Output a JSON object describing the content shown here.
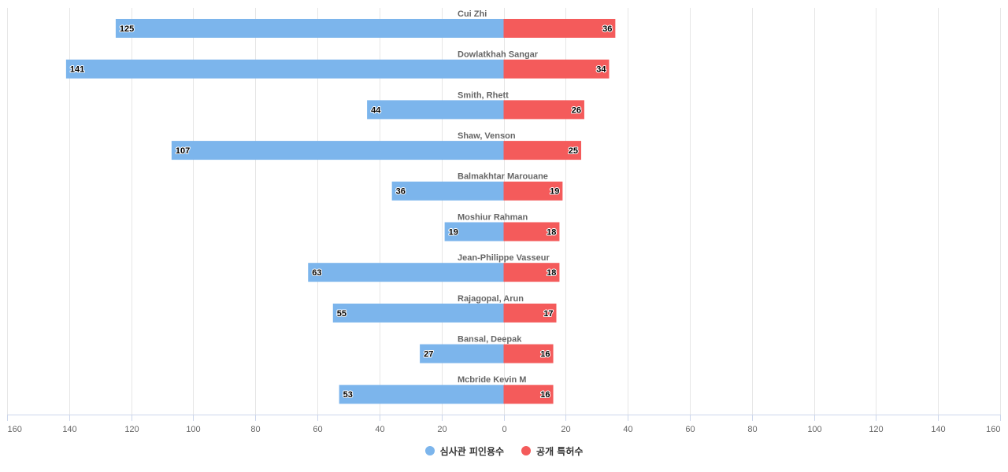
{
  "chart_data": {
    "type": "bar",
    "orientation": "horizontal-diverging",
    "categories": [
      "Cui Zhi",
      "Dowlatkhah Sangar",
      "Smith, Rhett",
      "Shaw, Venson",
      "Balmakhtar Marouane",
      "Moshiur Rahman",
      "Jean-Philippe Vasseur",
      "Rajagopal, Arun",
      "Bansal, Deepak",
      "Mcbride Kevin M"
    ],
    "series": [
      {
        "name": "심사관 피인용수",
        "color": "#7cb5ec",
        "side": "left",
        "values": [
          125,
          141,
          44,
          107,
          36,
          19,
          63,
          55,
          27,
          53
        ]
      },
      {
        "name": "공개 특허수",
        "color": "#f45b5b",
        "side": "right",
        "values": [
          36,
          34,
          26,
          25,
          19,
          18,
          18,
          17,
          16,
          16
        ]
      }
    ],
    "xlim": [
      -160,
      160
    ],
    "x_ticks": [
      -160,
      -140,
      -120,
      -100,
      -80,
      -60,
      -40,
      -20,
      0,
      20,
      40,
      60,
      80,
      100,
      120,
      140,
      160
    ],
    "tick_labels": [
      "160",
      "140",
      "120",
      "100",
      "80",
      "60",
      "40",
      "20",
      "0",
      "20",
      "40",
      "60",
      "80",
      "100",
      "120",
      "140",
      "160"
    ],
    "grid": true,
    "legend_position": "bottom-center"
  },
  "legend": {
    "items": [
      {
        "label": "심사관 피인용수",
        "color": "#7cb5ec"
      },
      {
        "label": "공개 특허수",
        "color": "#f45b5b"
      }
    ]
  }
}
